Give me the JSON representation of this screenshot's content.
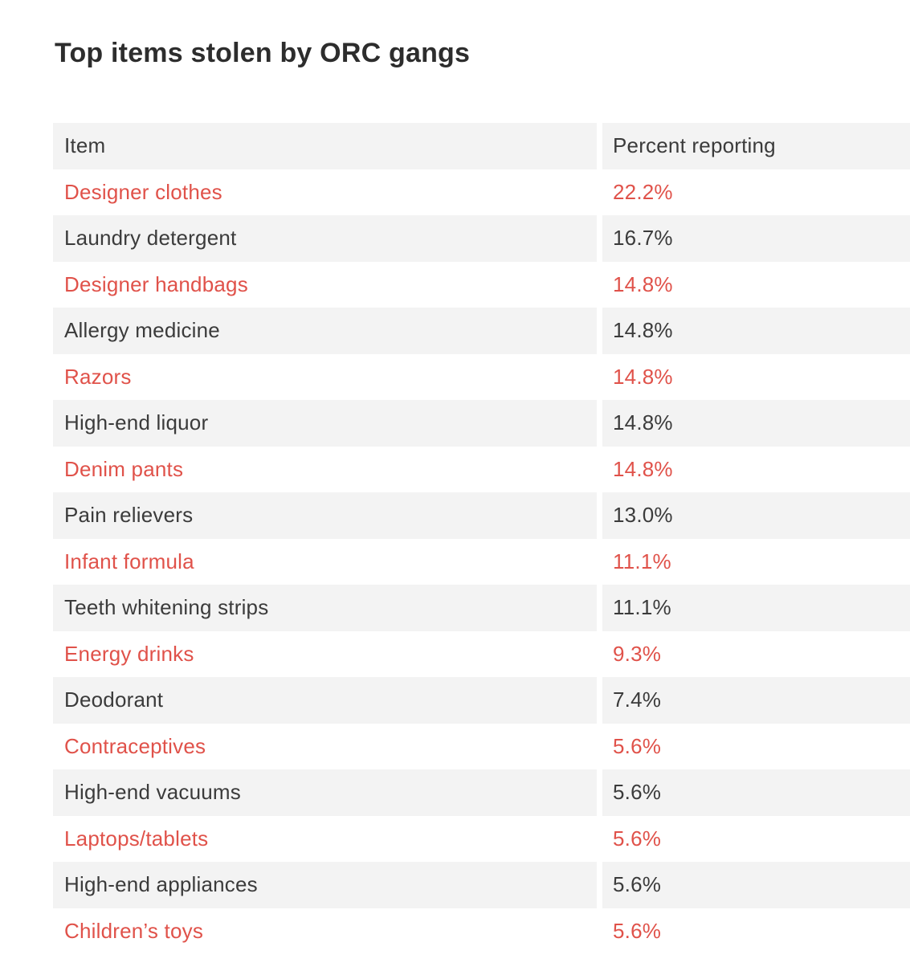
{
  "title": "Top items stolen by ORC gangs",
  "table": {
    "columns": [
      "Item",
      "Percent reporting"
    ],
    "rows": [
      {
        "item": "Designer clothes",
        "percent": "22.2%"
      },
      {
        "item": "Laundry detergent",
        "percent": "16.7%"
      },
      {
        "item": "Designer handbags",
        "percent": "14.8%"
      },
      {
        "item": "Allergy medicine",
        "percent": "14.8%"
      },
      {
        "item": "Razors",
        "percent": "14.8%"
      },
      {
        "item": "High-end liquor",
        "percent": "14.8%"
      },
      {
        "item": "Denim pants",
        "percent": "14.8%"
      },
      {
        "item": "Pain relievers",
        "percent": "13.0%"
      },
      {
        "item": "Infant formula",
        "percent": "11.1%"
      },
      {
        "item": "Teeth whitening strips",
        "percent": "11.1%"
      },
      {
        "item": "Energy drinks",
        "percent": "9.3%"
      },
      {
        "item": "Deodorant",
        "percent": "7.4%"
      },
      {
        "item": "Contraceptives",
        "percent": "5.6%"
      },
      {
        "item": "High-end vacuums",
        "percent": "5.6%"
      },
      {
        "item": "Laptops/tablets",
        "percent": "5.6%"
      },
      {
        "item": "High-end appliances",
        "percent": "5.6%"
      },
      {
        "item": "Children’s toys",
        "percent": "5.6%"
      }
    ]
  },
  "colors": {
    "title_text": "#2d2d2d",
    "body_text": "#3b3b3b",
    "highlight_text": "#e0524a",
    "row_stripe": "#f3f3f3",
    "background": "#ffffff"
  },
  "chart_data": {
    "type": "table",
    "title": "Top items stolen by ORC gangs",
    "columns": [
      "Item",
      "Percent reporting"
    ],
    "categories": [
      "Designer clothes",
      "Laundry detergent",
      "Designer handbags",
      "Allergy medicine",
      "Razors",
      "High-end liquor",
      "Denim pants",
      "Pain relievers",
      "Infant formula",
      "Teeth whitening strips",
      "Energy drinks",
      "Deodorant",
      "Contraceptives",
      "High-end vacuums",
      "Laptops/tablets",
      "High-end appliances",
      "Children’s toys"
    ],
    "values": [
      22.2,
      16.7,
      14.8,
      14.8,
      14.8,
      14.8,
      14.8,
      13.0,
      11.1,
      11.1,
      9.3,
      7.4,
      5.6,
      5.6,
      5.6,
      5.6,
      5.6
    ],
    "value_unit": "%",
    "layout": "striped rows, every other row highlighted in red, header row shaded"
  }
}
